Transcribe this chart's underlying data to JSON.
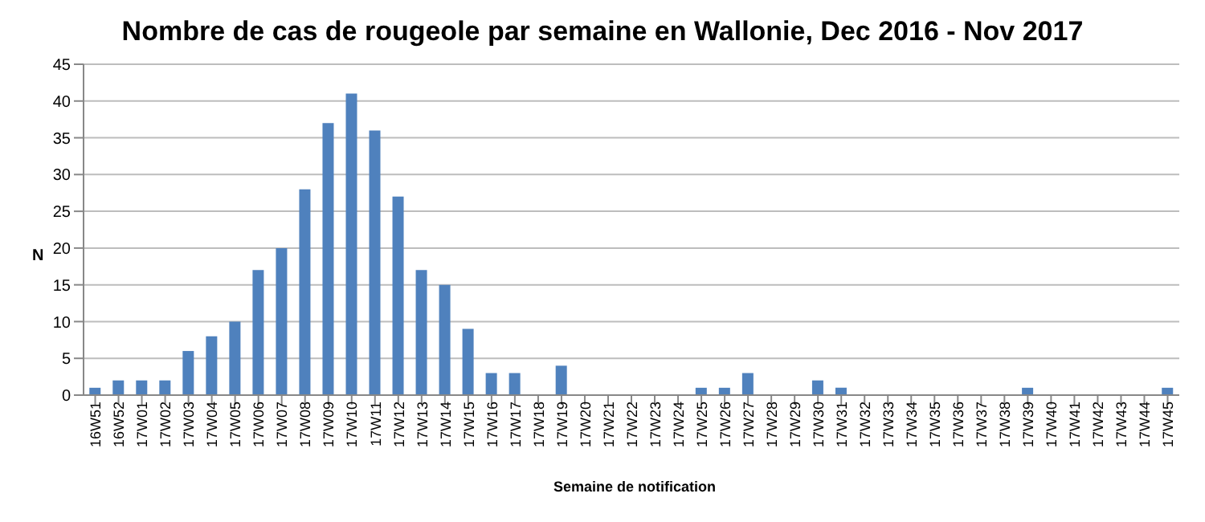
{
  "chart_data": {
    "type": "bar",
    "title": "Nombre de cas de rougeole par semaine en Wallonie, Dec 2016 - Nov 2017",
    "xlabel": "Semaine de notification",
    "ylabel": "N",
    "categories": [
      "16W51",
      "16W52",
      "17W01",
      "17W02",
      "17W03",
      "17W04",
      "17W05",
      "17W06",
      "17W07",
      "17W08",
      "17W09",
      "17W10",
      "17W11",
      "17W12",
      "17W13",
      "17W14",
      "17W15",
      "17W16",
      "17W17",
      "17W18",
      "17W19",
      "17W20",
      "17W21",
      "17W22",
      "17W23",
      "17W24",
      "17W25",
      "17W26",
      "17W27",
      "17W28",
      "17W29",
      "17W30",
      "17W31",
      "17W32",
      "17W33",
      "17W34",
      "17W35",
      "17W36",
      "17W37",
      "17W38",
      "17W39",
      "17W40",
      "17W41",
      "17W42",
      "17W43",
      "17W44",
      "17W45"
    ],
    "values": [
      1,
      2,
      2,
      2,
      6,
      8,
      10,
      17,
      20,
      28,
      37,
      41,
      36,
      27,
      17,
      15,
      9,
      3,
      3,
      0,
      4,
      0,
      0,
      0,
      0,
      0,
      1,
      1,
      3,
      0,
      0,
      2,
      1,
      0,
      0,
      0,
      0,
      0,
      0,
      0,
      1,
      0,
      0,
      0,
      0,
      0,
      1
    ],
    "color": "#4f81bd",
    "ylim": [
      0,
      45
    ],
    "yticks": [
      0,
      5,
      10,
      15,
      20,
      25,
      30,
      35,
      40,
      45
    ],
    "grid": "y",
    "legend": false
  }
}
